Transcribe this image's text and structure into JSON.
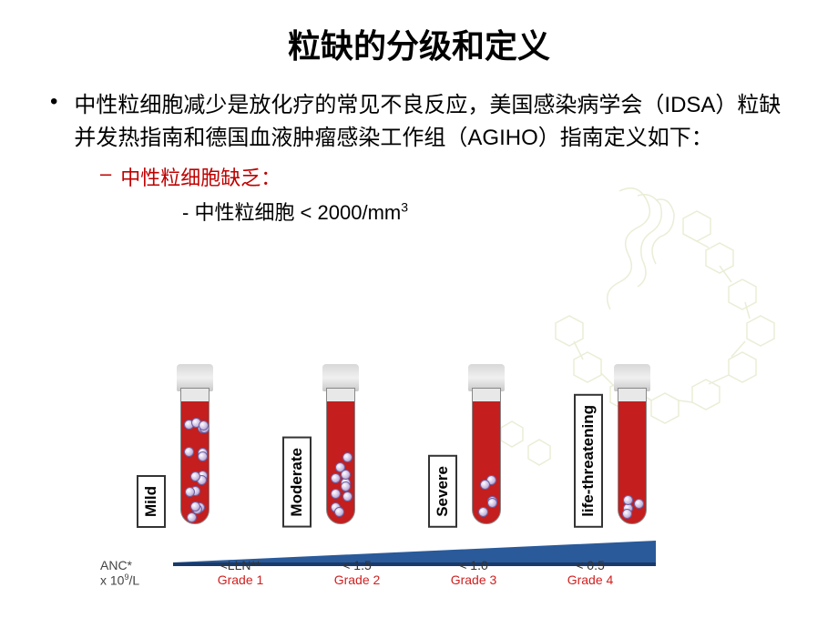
{
  "title": "粒缺的分级和定义",
  "bullet_main": "中性粒细胞减少是放化疗的常见不良反应，美国感染病学会（IDSA）粒缺并发热指南和德国血液肿瘤感染工作组（AGIHO）指南定义如下：",
  "sub_bullet": "中性粒细胞缺乏：",
  "sub_sub_prefix": "- 中性粒细胞 < 2000/mm",
  "sub_sub_sup": "3",
  "axis_label_l1": "ANC*",
  "axis_label_l2": "x 10",
  "axis_label_sup": "9",
  "axis_label_l2b": "/L",
  "tubes": [
    {
      "label": "Mild",
      "anc": "<LLN**",
      "grade": "Grade 1",
      "cell_fill": 0.95
    },
    {
      "label": "Moderate",
      "anc": "< 1.5",
      "grade": "Grade 2",
      "cell_fill": 0.55
    },
    {
      "label": "Severe",
      "anc": "< 1.0",
      "grade": "Grade 3",
      "cell_fill": 0.3
    },
    {
      "label": "life-threatening",
      "anc": "< 0.5",
      "grade": "Grade 4",
      "cell_fill": 0.12
    }
  ],
  "colors": {
    "blood": "#c41e1e",
    "grade_text": "#d02020",
    "wedge": "#2a5a9a",
    "sub_bullet": "#c00000",
    "molecule": "#d4dba8"
  }
}
